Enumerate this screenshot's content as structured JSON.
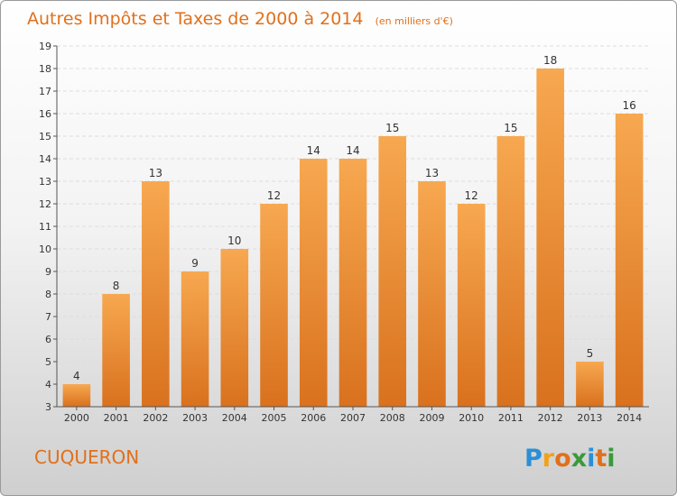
{
  "chart_data": {
    "type": "bar",
    "title": "Autres Impôts et Taxes de 2000 à 2014",
    "subtitle": "(en milliers d'€)",
    "xlabel": "",
    "ylabel": "",
    "categories": [
      "2000",
      "2001",
      "2002",
      "2003",
      "2004",
      "2005",
      "2006",
      "2007",
      "2008",
      "2009",
      "2010",
      "2011",
      "2012",
      "2013",
      "2014"
    ],
    "values": [
      4,
      8,
      13,
      9,
      10,
      12,
      14,
      14,
      15,
      13,
      12,
      15,
      18,
      5,
      16
    ],
    "ylim": [
      3,
      19
    ],
    "yticks": [
      3,
      4,
      5,
      6,
      7,
      8,
      9,
      10,
      11,
      12,
      13,
      14,
      15,
      16,
      17,
      18,
      19
    ],
    "grid": true,
    "bar_color_top": "#f7a850",
    "bar_color_bottom": "#d9711e"
  },
  "commune": "CUQUERON",
  "logo": {
    "letters": [
      "P",
      "r",
      "o",
      "x",
      "i",
      "t",
      "i"
    ],
    "colors": [
      "#2a8fd6",
      "#f0a21a",
      "#e0701c",
      "#3a9a3a",
      "#2a8fd6",
      "#e0701c",
      "#3a9a3a"
    ]
  }
}
